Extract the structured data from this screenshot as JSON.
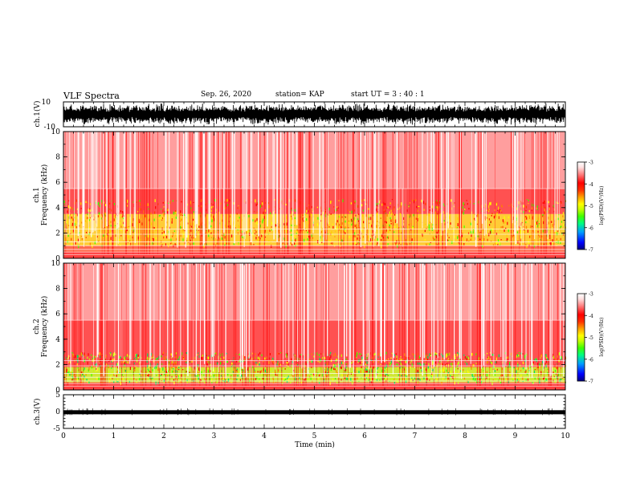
{
  "header": {
    "title": "VLF Spectra",
    "date": "Sep. 26, 2020",
    "station": "station= KAP",
    "start": "start  UT =  3 : 40 : 1"
  },
  "colors": {
    "background": "#ffffff",
    "axis": "#000000",
    "colormap": [
      "#000080",
      "#0000ff",
      "#00a0ff",
      "#00ff80",
      "#40ff00",
      "#c8ff00",
      "#ffff00",
      "#ffa000",
      "#ff3000",
      "#ff0000",
      "#ff8080",
      "#ffe0e0",
      "#ffffff"
    ]
  },
  "chart_data": [
    {
      "type": "line",
      "panel": "waveform",
      "ylabel": "ch.1(V)",
      "ylim": [
        -10,
        10
      ],
      "y_ticklabels": [
        "10",
        "-10"
      ],
      "xlim": [
        0,
        10
      ],
      "envelope_approx": [
        -9,
        9
      ]
    },
    {
      "type": "heatmap",
      "panel": "spectrogram",
      "ylabel_line1": "ch.1",
      "ylabel_line2": "Frequency (kHz)",
      "ylim": [
        0,
        10
      ],
      "y_ticklabels": [
        "0",
        "2",
        "4",
        "6",
        "8",
        "10"
      ],
      "xlim": [
        0,
        10
      ],
      "colorbar": {
        "label": "log(PSD)(V²/Hz)",
        "range": [
          -7,
          -3
        ],
        "ticklabels": [
          "-7",
          "-6",
          "-5",
          "-4",
          "-3"
        ]
      },
      "dominant_band_khz": [
        1,
        3.5
      ],
      "note_strong_level": -4.3
    },
    {
      "type": "heatmap",
      "panel": "spectrogram",
      "ylabel_line1": "ch.2",
      "ylabel_line2": "Frequency (kHz)",
      "ylim": [
        0,
        10
      ],
      "y_ticklabels": [
        "0",
        "2",
        "4",
        "6",
        "8",
        "10"
      ],
      "xlim": [
        0,
        10
      ],
      "colorbar": {
        "label": "log(PSD)(V²/Hz)",
        "range": [
          -7,
          -3
        ],
        "ticklabels": [
          "-7",
          "-6",
          "-5",
          "-4",
          "-3"
        ]
      },
      "dominant_band_khz": [
        0.6,
        1.8
      ],
      "note_strong_level": -5.0
    },
    {
      "type": "line",
      "panel": "waveform",
      "ylabel": "ch.3(V)",
      "ylim": [
        -5,
        5
      ],
      "y_ticklabels": [
        "5",
        "0",
        "-5"
      ],
      "xlim": [
        0,
        10
      ],
      "xlabel": "Time (min)",
      "x_ticklabels": [
        "0",
        "1",
        "2",
        "3",
        "4",
        "5",
        "6",
        "7",
        "8",
        "9",
        "10"
      ],
      "envelope_approx": [
        -0.8,
        0.4
      ]
    }
  ]
}
